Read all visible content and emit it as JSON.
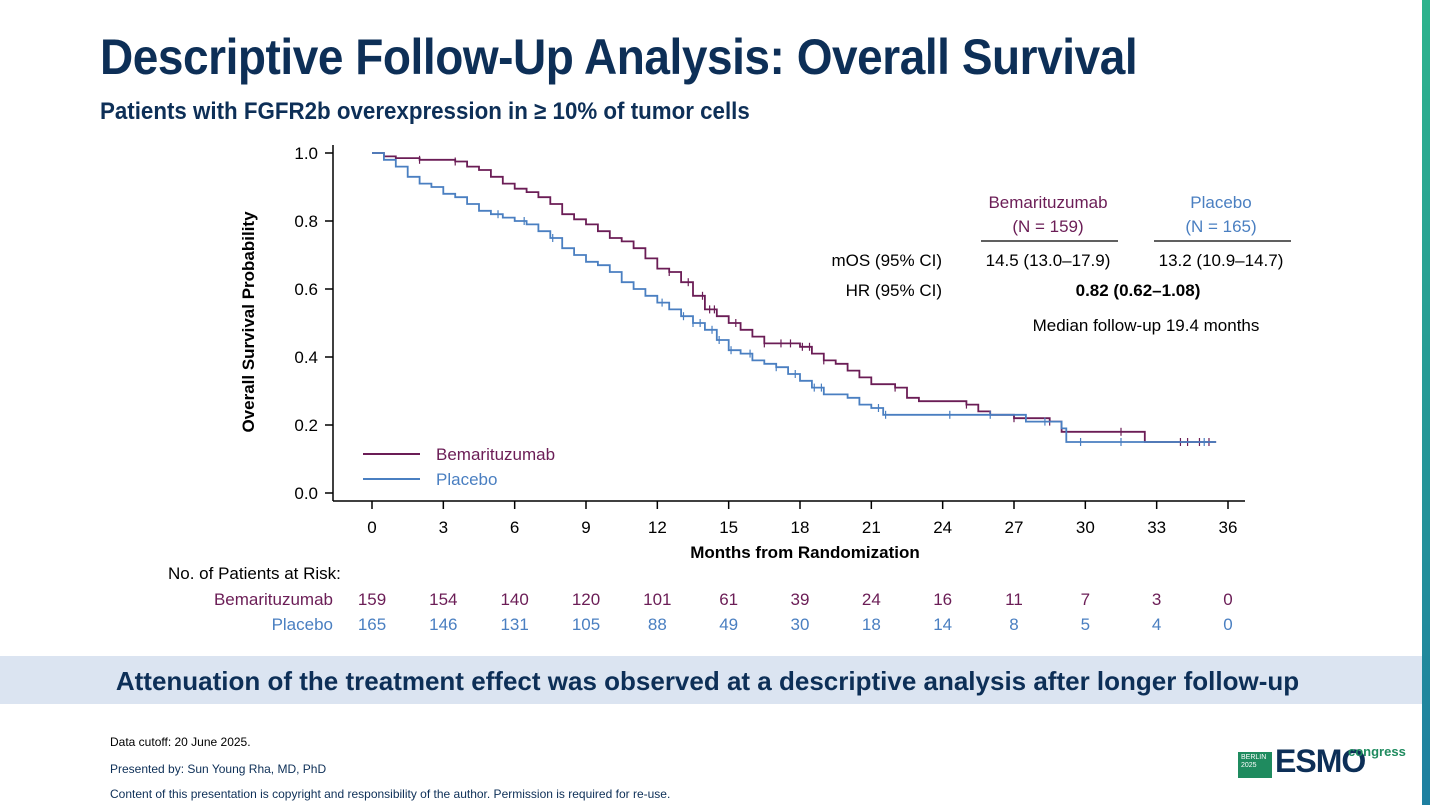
{
  "slide": {
    "title": "Descriptive Follow-Up Analysis: Overall Survival",
    "subtitle": "Patients with FGFR2b overexpression in ≥ 10% of tumor cells",
    "banner": "Attenuation of the treatment effect was observed at a descriptive analysis after longer follow-up",
    "footer": {
      "cutoff": "Data cutoff: 20 June 2025.",
      "presenter": "Presented by: Sun Young Rha, MD, PhD",
      "copyright": "Content of this presentation is copyright and responsibility of the author. Permission is required for re-use."
    },
    "logo": {
      "city_year": "BERLIN 2025",
      "brand": "ESMO",
      "word": "congress"
    }
  },
  "chart_data": {
    "type": "line",
    "title": "",
    "xlabel": "Months from Randomization",
    "ylabel": "Overall Survival Probability",
    "xlim": [
      0,
      36
    ],
    "ylim": [
      0,
      1.0
    ],
    "xticks": [
      0,
      3,
      6,
      9,
      12,
      15,
      18,
      21,
      24,
      27,
      30,
      33,
      36
    ],
    "yticks": [
      "0.0",
      "0.2",
      "0.4",
      "0.6",
      "0.8",
      "1.0"
    ],
    "grid": false,
    "legend": "bottom-left",
    "colors": {
      "bemarituzumab": "#6b1d56",
      "placebo": "#4a7fc1"
    },
    "series": [
      {
        "name": "Bemarituzumab",
        "color": "#6b1d56",
        "points": [
          [
            0,
            1.0
          ],
          [
            0.5,
            0.99
          ],
          [
            1,
            0.985
          ],
          [
            2,
            0.98
          ],
          [
            3.5,
            0.975
          ],
          [
            4,
            0.96
          ],
          [
            4.5,
            0.95
          ],
          [
            5,
            0.93
          ],
          [
            5.5,
            0.91
          ],
          [
            6,
            0.895
          ],
          [
            6.5,
            0.885
          ],
          [
            7,
            0.87
          ],
          [
            7.5,
            0.85
          ],
          [
            8,
            0.82
          ],
          [
            8.5,
            0.805
          ],
          [
            9,
            0.79
          ],
          [
            9.5,
            0.77
          ],
          [
            10,
            0.75
          ],
          [
            10.5,
            0.74
          ],
          [
            11,
            0.72
          ],
          [
            11.5,
            0.69
          ],
          [
            12,
            0.66
          ],
          [
            12.5,
            0.65
          ],
          [
            13,
            0.62
          ],
          [
            13.5,
            0.58
          ],
          [
            14,
            0.54
          ],
          [
            14.5,
            0.52
          ],
          [
            15,
            0.5
          ],
          [
            15.5,
            0.48
          ],
          [
            16,
            0.46
          ],
          [
            16.5,
            0.44
          ],
          [
            17.5,
            0.44
          ],
          [
            18,
            0.43
          ],
          [
            18.5,
            0.41
          ],
          [
            19,
            0.39
          ],
          [
            19.5,
            0.38
          ],
          [
            20,
            0.36
          ],
          [
            20.5,
            0.34
          ],
          [
            21,
            0.32
          ],
          [
            22,
            0.31
          ],
          [
            22.5,
            0.28
          ],
          [
            23,
            0.27
          ],
          [
            25,
            0.26
          ],
          [
            25.5,
            0.24
          ],
          [
            26,
            0.23
          ],
          [
            27,
            0.22
          ],
          [
            28,
            0.22
          ],
          [
            28.5,
            0.21
          ],
          [
            29,
            0.18
          ],
          [
            30,
            0.18
          ],
          [
            32,
            0.18
          ],
          [
            32.5,
            0.15
          ],
          [
            35.5,
            0.15
          ]
        ],
        "censor_x": [
          2,
          3.5,
          12.5,
          13.3,
          13.9,
          14.2,
          14.4,
          15.3,
          16.5,
          17.2,
          17.6,
          18.1,
          18.4,
          19.0,
          22.0,
          25.0,
          27.0,
          28.5,
          31.5,
          34.0,
          34.3,
          34.8,
          35.2
        ]
      },
      {
        "name": "Placebo",
        "color": "#4a7fc1",
        "points": [
          [
            0,
            1.0
          ],
          [
            0.5,
            0.98
          ],
          [
            1,
            0.96
          ],
          [
            1.5,
            0.93
          ],
          [
            2,
            0.91
          ],
          [
            2.5,
            0.9
          ],
          [
            3,
            0.88
          ],
          [
            3.5,
            0.87
          ],
          [
            4,
            0.85
          ],
          [
            4.5,
            0.83
          ],
          [
            5,
            0.82
          ],
          [
            5.5,
            0.81
          ],
          [
            6,
            0.8
          ],
          [
            6.5,
            0.79
          ],
          [
            7,
            0.77
          ],
          [
            7.5,
            0.75
          ],
          [
            8,
            0.72
          ],
          [
            8.5,
            0.7
          ],
          [
            9,
            0.68
          ],
          [
            9.5,
            0.67
          ],
          [
            10,
            0.65
          ],
          [
            10.5,
            0.62
          ],
          [
            11,
            0.6
          ],
          [
            11.5,
            0.58
          ],
          [
            12,
            0.56
          ],
          [
            12.5,
            0.54
          ],
          [
            13,
            0.52
          ],
          [
            13.5,
            0.5
          ],
          [
            14,
            0.48
          ],
          [
            14.5,
            0.45
          ],
          [
            15,
            0.42
          ],
          [
            15.5,
            0.41
          ],
          [
            16,
            0.39
          ],
          [
            16.5,
            0.38
          ],
          [
            17,
            0.37
          ],
          [
            17.5,
            0.35
          ],
          [
            18,
            0.33
          ],
          [
            18.5,
            0.31
          ],
          [
            19,
            0.29
          ],
          [
            20,
            0.28
          ],
          [
            20.5,
            0.26
          ],
          [
            21,
            0.25
          ],
          [
            21.5,
            0.23
          ],
          [
            27,
            0.23
          ],
          [
            27.5,
            0.21
          ],
          [
            28,
            0.21
          ],
          [
            29,
            0.19
          ],
          [
            29.2,
            0.15
          ],
          [
            35.5,
            0.15
          ]
        ],
        "censor_x": [
          5.3,
          6.4,
          7.6,
          12.2,
          13.1,
          13.5,
          13.8,
          14.3,
          14.6,
          15.1,
          15.9,
          17.0,
          17.8,
          18.6,
          18.9,
          21.3,
          21.6,
          24.3,
          26.0,
          28.3,
          29.8,
          31.5,
          35.0
        ]
      }
    ],
    "stats_table": {
      "bemarituzumab_header": [
        "Bemarituzumab",
        "(N = 159)"
      ],
      "placebo_header": [
        "Placebo",
        "(N = 165)"
      ],
      "rows": [
        {
          "label": "mOS (95% CI)",
          "bemarituzumab": "14.5 (13.0–17.9)",
          "placebo": "13.2 (10.9–14.7)"
        },
        {
          "label": "HR (95% CI)",
          "combined": "0.82 (0.62–1.08)"
        }
      ],
      "note": "Median follow-up 19.4 months"
    },
    "risk_table": {
      "title": "No. of Patients at Risk:",
      "time_points": [
        0,
        3,
        6,
        9,
        12,
        15,
        18,
        21,
        24,
        27,
        30,
        33,
        36
      ],
      "rows": [
        {
          "label": "Bemarituzumab",
          "color": "#6b1d56",
          "values": [
            "159",
            "154",
            "140",
            "120",
            "101",
            "61",
            "39",
            "24",
            "16",
            "11",
            "7",
            "3",
            "0"
          ]
        },
        {
          "label": "Placebo",
          "color": "#4a7fc1",
          "values": [
            "165",
            "146",
            "131",
            "105",
            "88",
            "49",
            "30",
            "18",
            "14",
            "8",
            "5",
            "4",
            "0"
          ]
        }
      ]
    }
  }
}
